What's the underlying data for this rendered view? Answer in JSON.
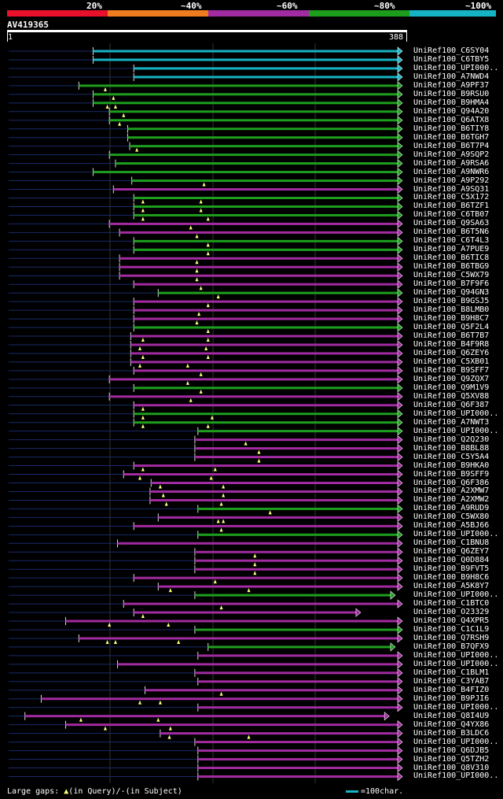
{
  "legend": {
    "labels": [
      "20%",
      "~40%",
      "~60%",
      "~80%",
      "~100%"
    ],
    "colors": [
      "#e8102a",
      "#f07c20",
      "#a12ba0",
      "#1c9e1c",
      "#16b3c4"
    ]
  },
  "query": {
    "id": "AV419365",
    "start": "1",
    "end": "388"
  },
  "footer": {
    "gaps_label": "Large gaps:",
    "query_marker": "▲",
    "query_text": "(in Query)/",
    "subject_marker": "-",
    "subject_text": "(in Subject)",
    "scale_text": "=100char."
  },
  "chart_data": {
    "type": "alignment",
    "query_length": 388,
    "hits": [
      {
        "label": "UniRef100_C6SY04",
        "start": 84,
        "end": 388,
        "color": "cyan",
        "gaps": []
      },
      {
        "label": "UniRef100_C6TBY5",
        "start": 84,
        "end": 388,
        "color": "cyan",
        "gaps": []
      },
      {
        "label": "UniRef100_UPI000..",
        "start": 124,
        "end": 388,
        "color": "cyan",
        "gaps": []
      },
      {
        "label": "UniRef100_A7NWD4",
        "start": 124,
        "end": 388,
        "color": "cyan",
        "gaps": []
      },
      {
        "label": "UniRef100_A9PF37",
        "start": 70,
        "end": 388,
        "color": "green",
        "gaps": [
          96
        ]
      },
      {
        "label": "UniRef100_B9RSU0",
        "start": 84,
        "end": 388,
        "color": "green",
        "gaps": [
          104
        ]
      },
      {
        "label": "UniRef100_B9HMA4",
        "start": 84,
        "end": 388,
        "color": "green",
        "gaps": [
          98,
          106
        ]
      },
      {
        "label": "UniRef100_Q94A20",
        "start": 100,
        "end": 388,
        "color": "green",
        "gaps": [
          114
        ]
      },
      {
        "label": "UniRef100_Q6ATX8",
        "start": 100,
        "end": 388,
        "color": "green",
        "gaps": [
          110
        ]
      },
      {
        "label": "UniRef100_B6TIY8",
        "start": 118,
        "end": 388,
        "color": "green",
        "gaps": []
      },
      {
        "label": "UniRef100_B6TGH7",
        "start": 118,
        "end": 388,
        "color": "green",
        "gaps": []
      },
      {
        "label": "UniRef100_B6T7P4",
        "start": 120,
        "end": 388,
        "color": "green",
        "gaps": [
          127
        ]
      },
      {
        "label": "UniRef100_A9SQP2",
        "start": 100,
        "end": 388,
        "color": "green",
        "gaps": []
      },
      {
        "label": "UniRef100_A9RSA6",
        "start": 106,
        "end": 388,
        "color": "green",
        "gaps": []
      },
      {
        "label": "UniRef100_A9NWR6",
        "start": 84,
        "end": 388,
        "color": "green",
        "gaps": []
      },
      {
        "label": "UniRef100_A9P292",
        "start": 122,
        "end": 388,
        "color": "green",
        "gaps": [
          193
        ]
      },
      {
        "label": "UniRef100_A9SQ31",
        "start": 104,
        "end": 388,
        "color": "purple",
        "gaps": []
      },
      {
        "label": "UniRef100_C5X172",
        "start": 124,
        "end": 388,
        "color": "green",
        "gaps": [
          133,
          190
        ]
      },
      {
        "label": "UniRef100_B6TZF1",
        "start": 124,
        "end": 388,
        "color": "green",
        "gaps": [
          133,
          190
        ]
      },
      {
        "label": "UniRef100_C6TB07",
        "start": 124,
        "end": 388,
        "color": "green",
        "gaps": [
          133,
          197
        ]
      },
      {
        "label": "UniRef100_Q9SA63",
        "start": 100,
        "end": 388,
        "color": "purple",
        "gaps": [
          180
        ]
      },
      {
        "label": "UniRef100_B6T5N6",
        "start": 110,
        "end": 388,
        "color": "purple",
        "gaps": [
          186
        ]
      },
      {
        "label": "UniRef100_C6T4L3",
        "start": 124,
        "end": 388,
        "color": "green",
        "gaps": [
          197
        ]
      },
      {
        "label": "UniRef100_A7PUE9",
        "start": 124,
        "end": 388,
        "color": "green",
        "gaps": [
          197
        ]
      },
      {
        "label": "UniRef100_B6TIC8",
        "start": 110,
        "end": 388,
        "color": "purple",
        "gaps": [
          186
        ]
      },
      {
        "label": "UniRef100_B6TBG9",
        "start": 110,
        "end": 388,
        "color": "purple",
        "gaps": [
          186
        ]
      },
      {
        "label": "UniRef100_C5WX79",
        "start": 110,
        "end": 388,
        "color": "purple",
        "gaps": [
          186
        ]
      },
      {
        "label": "UniRef100_B7F9F6",
        "start": 124,
        "end": 388,
        "color": "purple",
        "gaps": [
          190
        ]
      },
      {
        "label": "UniRef100_Q94GN3",
        "start": 148,
        "end": 388,
        "color": "green",
        "gaps": [
          207
        ]
      },
      {
        "label": "UniRef100_B9GSJ5",
        "start": 124,
        "end": 388,
        "color": "purple",
        "gaps": [
          197
        ]
      },
      {
        "label": "UniRef100_B8LMB0",
        "start": 124,
        "end": 388,
        "color": "purple",
        "gaps": [
          188
        ]
      },
      {
        "label": "UniRef100_B9H8C7",
        "start": 124,
        "end": 388,
        "color": "purple",
        "gaps": [
          186
        ]
      },
      {
        "label": "UniRef100_Q5F2L4",
        "start": 124,
        "end": 388,
        "color": "green",
        "gaps": [
          197
        ]
      },
      {
        "label": "UniRef100_B6T7B7",
        "start": 121,
        "end": 388,
        "color": "purple",
        "gaps": [
          133,
          197
        ]
      },
      {
        "label": "UniRef100_B4F9R8",
        "start": 121,
        "end": 388,
        "color": "purple",
        "gaps": [
          130,
          195
        ]
      },
      {
        "label": "UniRef100_Q6ZEY6",
        "start": 121,
        "end": 388,
        "color": "purple",
        "gaps": [
          133,
          197
        ]
      },
      {
        "label": "UniRef100_C5XB01",
        "start": 121,
        "end": 388,
        "color": "purple",
        "gaps": [
          130,
          177
        ]
      },
      {
        "label": "UniRef100_B9SFF7",
        "start": 124,
        "end": 388,
        "color": "purple",
        "gaps": [
          190
        ]
      },
      {
        "label": "UniRef100_Q9ZQX7",
        "start": 100,
        "end": 388,
        "color": "purple",
        "gaps": [
          177
        ]
      },
      {
        "label": "UniRef100_Q9M1V9",
        "start": 124,
        "end": 388,
        "color": "green",
        "gaps": [
          190
        ]
      },
      {
        "label": "UniRef100_Q5XV88",
        "start": 100,
        "end": 388,
        "color": "purple",
        "gaps": [
          180
        ]
      },
      {
        "label": "UniRef100_Q6F387",
        "start": 124,
        "end": 388,
        "color": "purple",
        "gaps": [
          133
        ]
      },
      {
        "label": "UniRef100_UPI000..",
        "start": 124,
        "end": 388,
        "color": "green",
        "gaps": [
          133,
          201
        ]
      },
      {
        "label": "UniRef100_A7NWT3",
        "start": 124,
        "end": 388,
        "color": "green",
        "gaps": [
          133,
          197
        ]
      },
      {
        "label": "UniRef100_UPI000..",
        "start": 187,
        "end": 388,
        "color": "green",
        "gaps": []
      },
      {
        "label": "UniRef100_Q2Q230",
        "start": 184,
        "end": 388,
        "color": "purple",
        "gaps": [
          234
        ]
      },
      {
        "label": "UniRef100_B8BL88",
        "start": 184,
        "end": 388,
        "color": "purple",
        "gaps": [
          247
        ]
      },
      {
        "label": "UniRef100_C5Y5A4",
        "start": 184,
        "end": 388,
        "color": "purple",
        "gaps": [
          247
        ]
      },
      {
        "label": "UniRef100_B9HKA0",
        "start": 124,
        "end": 388,
        "color": "purple",
        "gaps": [
          133,
          204
        ]
      },
      {
        "label": "UniRef100_B9SFF9",
        "start": 114,
        "end": 388,
        "color": "purple",
        "gaps": [
          130,
          200
        ]
      },
      {
        "label": "UniRef100_Q6F386",
        "start": 141,
        "end": 388,
        "color": "purple",
        "gaps": [
          150,
          212
        ]
      },
      {
        "label": "UniRef100_A2XMW7",
        "start": 140,
        "end": 388,
        "color": "purple",
        "gaps": [
          153,
          212
        ]
      },
      {
        "label": "UniRef100_A2XMW2",
        "start": 140,
        "end": 388,
        "color": "purple",
        "gaps": [
          156,
          210
        ]
      },
      {
        "label": "UniRef100_A9RUD9",
        "start": 187,
        "end": 388,
        "color": "green",
        "gaps": [
          258
        ]
      },
      {
        "label": "UniRef100_C5WX80",
        "start": 148,
        "end": 388,
        "color": "purple",
        "gaps": [
          207,
          212
        ]
      },
      {
        "label": "UniRef100_A5BJ66",
        "start": 124,
        "end": 388,
        "color": "purple",
        "gaps": [
          210
        ]
      },
      {
        "label": "UniRef100_UPI000..",
        "start": 187,
        "end": 388,
        "color": "green",
        "gaps": []
      },
      {
        "label": "UniRef100_C1BNU8",
        "start": 108,
        "end": 388,
        "color": "purple",
        "gaps": []
      },
      {
        "label": "UniRef100_Q6ZEY7",
        "start": 184,
        "end": 388,
        "color": "purple",
        "gaps": [
          243
        ]
      },
      {
        "label": "UniRef100_Q0D884",
        "start": 184,
        "end": 388,
        "color": "purple",
        "gaps": [
          243
        ]
      },
      {
        "label": "UniRef100_B9FVT5",
        "start": 184,
        "end": 388,
        "color": "purple",
        "gaps": [
          243
        ]
      },
      {
        "label": "UniRef100_B9H8C6",
        "start": 124,
        "end": 388,
        "color": "purple",
        "gaps": [
          204
        ]
      },
      {
        "label": "UniRef100_A5K8Y7",
        "start": 148,
        "end": 388,
        "color": "purple",
        "gaps": [
          160,
          237
        ]
      },
      {
        "label": "UniRef100_UPI000..",
        "start": 184,
        "end": 381,
        "color": "green",
        "gaps": []
      },
      {
        "label": "UniRef100_C1BTC0",
        "start": 114,
        "end": 388,
        "color": "purple",
        "gaps": [
          210
        ]
      },
      {
        "label": "UniRef100_O23329",
        "start": 124,
        "end": 347,
        "color": "purple",
        "gaps": [
          133
        ]
      },
      {
        "label": "UniRef100_Q4XPR5",
        "start": 57,
        "end": 388,
        "color": "purple",
        "gaps": [
          100,
          158
        ]
      },
      {
        "label": "UniRef100_C1C1L9",
        "start": 184,
        "end": 388,
        "color": "green",
        "gaps": []
      },
      {
        "label": "UniRef100_Q7RSH9",
        "start": 70,
        "end": 388,
        "color": "purple",
        "gaps": [
          98,
          106,
          168
        ]
      },
      {
        "label": "UniRef100_B7QFX9",
        "start": 197,
        "end": 381,
        "color": "green",
        "gaps": []
      },
      {
        "label": "UniRef100_UPI000..",
        "start": 187,
        "end": 388,
        "color": "purple",
        "gaps": []
      },
      {
        "label": "UniRef100_UPI000..",
        "start": 108,
        "end": 388,
        "color": "purple",
        "gaps": []
      },
      {
        "label": "UniRef100_C1BLM1",
        "start": 184,
        "end": 388,
        "color": "purple",
        "gaps": []
      },
      {
        "label": "UniRef100_C3YAB7",
        "start": 187,
        "end": 388,
        "color": "purple",
        "gaps": []
      },
      {
        "label": "UniRef100_B4FIZ0",
        "start": 135,
        "end": 388,
        "color": "purple",
        "gaps": [
          210
        ]
      },
      {
        "label": "UniRef100_B9PJI6",
        "start": 33,
        "end": 388,
        "color": "purple",
        "gaps": [
          130,
          150
        ]
      },
      {
        "label": "UniRef100_UPI000..",
        "start": 187,
        "end": 388,
        "color": "purple",
        "gaps": []
      },
      {
        "label": "UniRef100_Q8I4U9",
        "start": 17,
        "end": 375,
        "color": "purple",
        "gaps": [
          72,
          148
        ]
      },
      {
        "label": "UniRef100_Q4YX86",
        "start": 57,
        "end": 388,
        "color": "purple",
        "gaps": [
          96,
          160
        ]
      },
      {
        "label": "UniRef100_B3LDC6",
        "start": 150,
        "end": 388,
        "color": "purple",
        "gaps": [
          159,
          237
        ]
      },
      {
        "label": "UniRef100_UPI000..",
        "start": 184,
        "end": 388,
        "color": "purple",
        "gaps": []
      },
      {
        "label": "UniRef100_Q6DJB5",
        "start": 187,
        "end": 388,
        "color": "purple",
        "gaps": []
      },
      {
        "label": "UniRef100_Q5TZH2",
        "start": 187,
        "end": 388,
        "color": "purple",
        "gaps": []
      },
      {
        "label": "UniRef100_Q8V310",
        "start": 187,
        "end": 388,
        "color": "purple",
        "gaps": []
      },
      {
        "label": "UniRef100_UPI000..",
        "start": 187,
        "end": 388,
        "color": "purple",
        "gaps": []
      }
    ]
  }
}
